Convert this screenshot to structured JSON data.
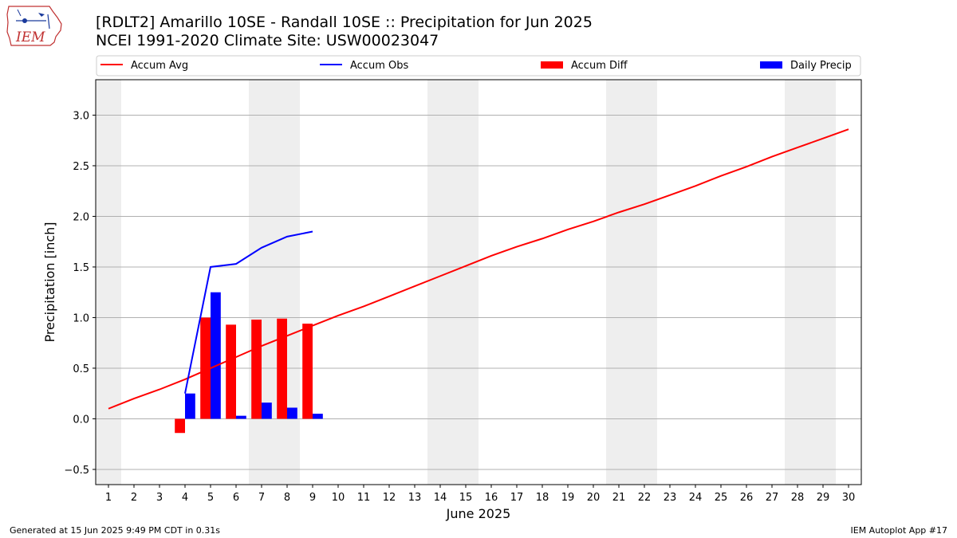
{
  "header": {
    "logo_text": "IEM",
    "title_line1": "[RDLT2] Amarillo 10SE - Randall 10SE :: Precipitation for Jun 2025",
    "title_line2": "NCEI 1991-2020 Climate Site: USW00023047"
  },
  "footer": {
    "generated": "Generated at 15 Jun 2025 9:49 PM CDT in 0.31s",
    "app": "IEM Autoplot App #17"
  },
  "colors": {
    "avg": "#ff0000",
    "obs": "#0000ff",
    "diff": "#ff0000",
    "daily": "#0000ff",
    "weekend_shade": "#eeeeee",
    "grid": "#b0b0b0"
  },
  "chart_data": {
    "type": "bar",
    "xlabel": "June 2025",
    "ylabel": "Precipitation [inch]",
    "xlim": [
      0.5,
      30.5
    ],
    "ylim": [
      -0.65,
      3.35
    ],
    "yticks": [
      -0.5,
      0.0,
      0.5,
      1.0,
      1.5,
      2.0,
      2.5,
      3.0
    ],
    "ytick_labels": [
      "−0.5",
      "0.0",
      "0.5",
      "1.0",
      "1.5",
      "2.0",
      "2.5",
      "3.0"
    ],
    "xticks": [
      1,
      2,
      3,
      4,
      5,
      6,
      7,
      8,
      9,
      10,
      11,
      12,
      13,
      14,
      15,
      16,
      17,
      18,
      19,
      20,
      21,
      22,
      23,
      24,
      25,
      26,
      27,
      28,
      29,
      30
    ],
    "grid": "horizontal",
    "legend_position": "top",
    "weekend_spans": [
      [
        0.5,
        1.5
      ],
      [
        6.5,
        8.5
      ],
      [
        13.5,
        15.5
      ],
      [
        20.5,
        22.5
      ],
      [
        27.5,
        29.5
      ]
    ],
    "legend": [
      "Accum Avg",
      "Accum Obs",
      "Accum Diff",
      "Daily Precip"
    ],
    "series": [
      {
        "name": "Accum Avg",
        "kind": "line",
        "x": [
          1,
          2,
          3,
          4,
          5,
          6,
          7,
          8,
          9,
          10,
          11,
          12,
          13,
          14,
          15,
          16,
          17,
          18,
          19,
          20,
          21,
          22,
          23,
          24,
          25,
          26,
          27,
          28,
          29,
          30
        ],
        "values": [
          0.1,
          0.2,
          0.29,
          0.39,
          0.5,
          0.61,
          0.72,
          0.82,
          0.92,
          1.02,
          1.11,
          1.21,
          1.31,
          1.41,
          1.51,
          1.61,
          1.7,
          1.78,
          1.87,
          1.95,
          2.04,
          2.12,
          2.21,
          2.3,
          2.4,
          2.49,
          2.59,
          2.68,
          2.77,
          2.86
        ]
      },
      {
        "name": "Accum Obs",
        "kind": "line",
        "x": [
          4,
          5,
          6,
          7,
          8,
          9
        ],
        "values": [
          0.25,
          1.5,
          1.53,
          1.69,
          1.8,
          1.85
        ]
      },
      {
        "name": "Accum Diff",
        "kind": "bar",
        "x": [
          4,
          5,
          6,
          7,
          8,
          9
        ],
        "values": [
          -0.14,
          1.0,
          0.93,
          0.98,
          0.99,
          0.94
        ]
      },
      {
        "name": "Daily Precip",
        "kind": "bar",
        "x": [
          4,
          5,
          6,
          7,
          8,
          9
        ],
        "values": [
          0.25,
          1.25,
          0.03,
          0.16,
          0.11,
          0.05
        ]
      }
    ]
  }
}
